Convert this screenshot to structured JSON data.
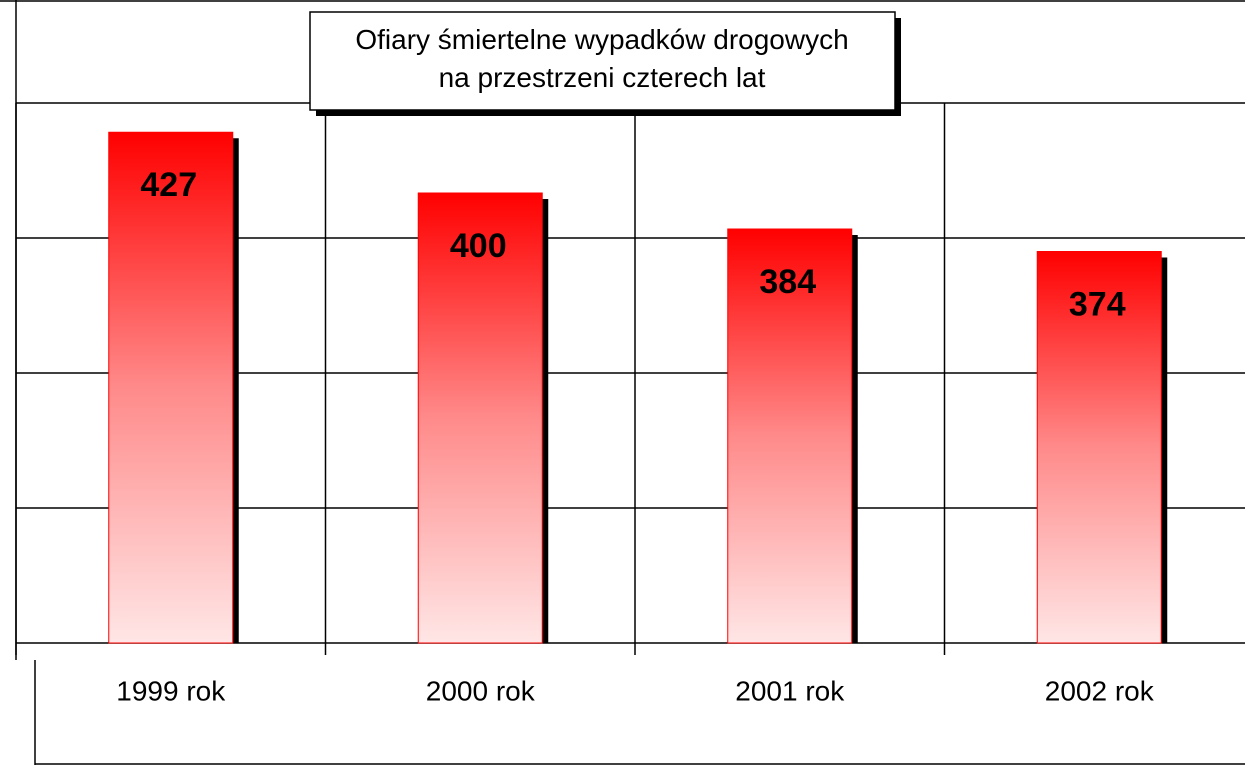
{
  "chart_data": {
    "type": "bar",
    "title": "Ofiary  śmiertelne wypadków drogowych\nna przestrzeni czterech lat",
    "categories": [
      "1999 rok",
      "2000 rok",
      "2001 rok",
      "2002 rok"
    ],
    "values": [
      427,
      400,
      384,
      374
    ],
    "color": "#ff0000",
    "ylim": [
      200,
      440
    ],
    "yticks": [
      200,
      260,
      320,
      380,
      440
    ],
    "grid": true
  }
}
